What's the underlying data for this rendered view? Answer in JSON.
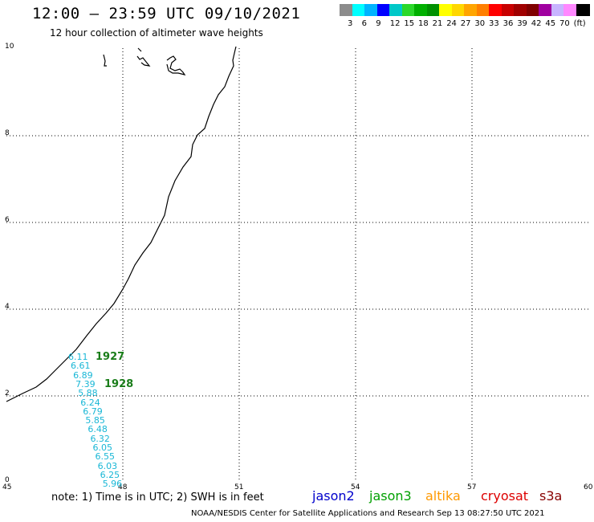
{
  "header": {
    "title": "12:00 – 23:59 UTC 09/10/2021",
    "subtitle": "12 hour collection of altimeter wave heights"
  },
  "color_scale": {
    "colors": [
      "#8c8c8c",
      "#00ffff",
      "#00b4ff",
      "#0000ff",
      "#00c8c8",
      "#2bd82b",
      "#00b000",
      "#009000",
      "#ffff00",
      "#ffd700",
      "#ffa500",
      "#ff7f00",
      "#ff0000",
      "#c80000",
      "#a00000",
      "#800000",
      "#a000a0",
      "#c8b4ff",
      "#ff88ff",
      "#000000"
    ],
    "labels": [
      "3",
      "6",
      "9",
      "12",
      "15",
      "18",
      "21",
      "24",
      "27",
      "30",
      "33",
      "36",
      "39",
      "42",
      "45",
      "70",
      "(ft)"
    ]
  },
  "map": {
    "x_labels": [
      "45",
      "48",
      "51",
      "54",
      "57",
      "60"
    ],
    "y_labels": [
      "10",
      "8",
      "6",
      "4",
      "2",
      "0"
    ],
    "x_range": [
      45,
      60
    ],
    "y_range": [
      0,
      10
    ],
    "grid_style": "dotted"
  },
  "track": {
    "swh_values": [
      "6.11",
      "6.61",
      "6.89",
      "7.39",
      "5.88",
      "6.24",
      "6.79",
      "5.85",
      "6.48",
      "6.32",
      "6.05",
      "6.55",
      "6.03",
      "6.25",
      "5.96"
    ],
    "swh_color": "#19b7d6",
    "orbit_labels": [
      "1927",
      "1928"
    ],
    "orbit_color": "#1a7d1a"
  },
  "footer": {
    "note": "note:  1) Time is in UTC;  2) SWH is in feet",
    "satellites": [
      {
        "name": "jason2",
        "color": "#0000cc"
      },
      {
        "name": "jason3",
        "color": "#00a000"
      },
      {
        "name": "altika",
        "color": "#ff9900"
      },
      {
        "name": "cryosat",
        "color": "#dd0000"
      },
      {
        "name": "s3a",
        "color": "#880000"
      }
    ],
    "credit": "NOAA/NESDIS Center for Satellite Applications and Research    Sep 13 08:27:50 UTC 2021"
  }
}
